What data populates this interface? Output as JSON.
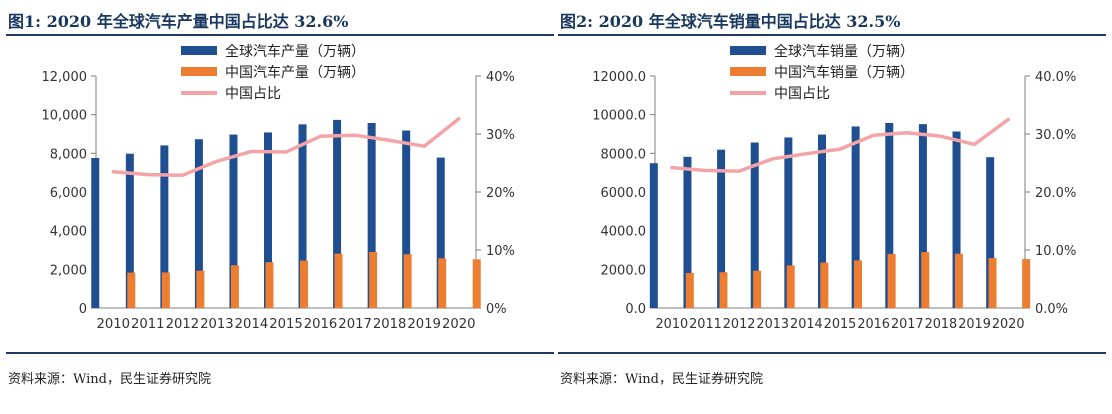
{
  "figures": [
    {
      "title": "图1: 2020 年全球汽车产量中国占比达 32.6%",
      "source": "资料来源：Wind，民生证券研究院",
      "chart_data": {
        "type": "bar",
        "categories": [
          "2010",
          "2011",
          "2012",
          "2013",
          "2014",
          "2015",
          "2016",
          "2017",
          "2018",
          "2019",
          "2020"
        ],
        "series": [
          {
            "name": "全球汽车产量（万辆）",
            "type": "bar",
            "axis": "left",
            "color": "#1f4e91",
            "values": [
              7760,
              7980,
              8410,
              8730,
              8970,
              9080,
              9500,
              9730,
              9570,
              9180,
              7780
            ]
          },
          {
            "name": "中国汽车产量（万辆）",
            "type": "bar",
            "axis": "left",
            "color": "#ed7d31",
            "values": [
              1830,
              1840,
              1930,
              2210,
              2370,
              2450,
              2810,
              2900,
              2780,
              2570,
              2520
            ]
          },
          {
            "name": "中国占比",
            "type": "line",
            "axis": "right",
            "color": "#f4a3a6",
            "values": [
              23.5,
              23.0,
              22.9,
              25.3,
              27.0,
              26.9,
              29.6,
              29.8,
              28.9,
              27.9,
              32.6
            ]
          }
        ],
        "y_left": {
          "min": 0,
          "max": 12000,
          "ticks": [
            0,
            2000,
            4000,
            6000,
            8000,
            10000,
            12000
          ],
          "tick_labels": [
            "0",
            "2,000",
            "4,000",
            "6,000",
            "8,000",
            "10,000",
            "12,000"
          ]
        },
        "y_right": {
          "min": 0,
          "max": 40,
          "ticks": [
            0,
            10,
            20,
            30,
            40
          ],
          "tick_labels": [
            "0%",
            "10%",
            "20%",
            "30%",
            "40%"
          ]
        },
        "legend_position": "top-center",
        "grid": false
      }
    },
    {
      "title": "图2: 2020 年全球汽车销量中国占比达 32.5%",
      "source": "资料来源：Wind，民生证券研究院",
      "chart_data": {
        "type": "bar",
        "categories": [
          "2010",
          "2011",
          "2012",
          "2013",
          "2014",
          "2015",
          "2016",
          "2017",
          "2018",
          "2019",
          "2020"
        ],
        "series": [
          {
            "name": "全球汽车销量（万辆）",
            "type": "bar",
            "axis": "left",
            "color": "#1f4e91",
            "values": [
              7490,
              7820,
              8190,
              8560,
              8820,
              8970,
              9390,
              9570,
              9510,
              9130,
              7800
            ]
          },
          {
            "name": "中国汽车销量（万辆）",
            "type": "bar",
            "axis": "left",
            "color": "#ed7d31",
            "values": [
              1810,
              1850,
              1930,
              2200,
              2350,
              2460,
              2800,
              2890,
              2810,
              2580,
              2530
            ]
          },
          {
            "name": "中国占比",
            "type": "line",
            "axis": "right",
            "color": "#f4a3a6",
            "values": [
              24.2,
              23.7,
              23.6,
              25.7,
              26.6,
              27.4,
              29.8,
              30.2,
              29.6,
              28.2,
              32.5
            ]
          }
        ],
        "y_left": {
          "min": 0,
          "max": 12000,
          "ticks": [
            0,
            2000,
            4000,
            6000,
            8000,
            10000,
            12000
          ],
          "tick_labels": [
            "0.0",
            "2000.0",
            "4000.0",
            "6000.0",
            "8000.0",
            "10000.0",
            "12000.0"
          ]
        },
        "y_right": {
          "min": 0,
          "max": 40,
          "ticks": [
            0,
            10,
            20,
            30,
            40
          ],
          "tick_labels": [
            "0.0%",
            "10.0%",
            "20.0%",
            "30.0%",
            "40.0%"
          ]
        },
        "legend_position": "top-center",
        "grid": false
      }
    }
  ]
}
